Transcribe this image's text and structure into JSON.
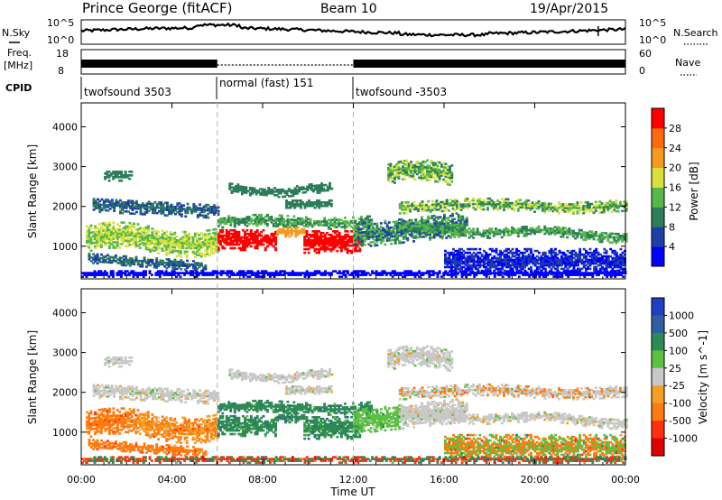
{
  "header": {
    "station": "Prince George (fitACF)",
    "beam": "Beam 10",
    "date": "19/Apr/2015"
  },
  "colors": {
    "trace": "#000000",
    "axis": "#000000",
    "guide": "#b0b0b0"
  },
  "noise_panel": {
    "left_label": "N.Sky",
    "left_ticks": [
      "10^5",
      "10^0"
    ],
    "right_label": "N.Search",
    "right_ticks": [
      "10^5",
      "10^0"
    ],
    "scale": "log"
  },
  "freq_panel": {
    "left_label_1": "Freq.",
    "left_label_2": "[MHz]",
    "left_ticks": [
      "18",
      "8"
    ],
    "right_label": "Nave",
    "right_ticks": [
      "60",
      "0"
    ]
  },
  "cpid": {
    "label": "CPID",
    "segments": [
      {
        "name": "twofsound 3503",
        "start_h": 0,
        "end_h": 6
      },
      {
        "name": "normal (fast) 151",
        "start_h": 6,
        "end_h": 12
      },
      {
        "name": "twofsound -3503",
        "start_h": 12,
        "end_h": 24
      }
    ]
  },
  "x_axis": {
    "label": "Time UT",
    "ticks": [
      "00:00",
      "04:00",
      "08:00",
      "12:00",
      "16:00",
      "20:00",
      "00:00"
    ],
    "range_h": [
      0,
      24
    ]
  },
  "chart_data": [
    {
      "type": "heatmap",
      "name_key": "power",
      "ylabel": "Slant Range [km]",
      "yticks": [
        1000,
        2000,
        3000,
        4000
      ],
      "ylim": [
        180,
        4600
      ],
      "colorbar_label": "Power [dB]",
      "colorbar_ticks": [
        "4",
        "8",
        "12",
        "16",
        "20",
        "24",
        "28"
      ],
      "colorbar_colors": [
        "#0000ff",
        "#1f3fa8",
        "#2d7d5a",
        "#56b84a",
        "#d9e03a",
        "#f59a1e",
        "#ff6a10",
        "#ff0000"
      ]
    },
    {
      "type": "heatmap",
      "name_key": "velocity",
      "ylabel": "Slant Range [km]",
      "yticks": [
        1000,
        2000,
        3000,
        4000
      ],
      "ylim": [
        180,
        4600
      ],
      "colorbar_label": "Velocity [m s^-1]",
      "colorbar_ticks": [
        "1000",
        "500",
        "100",
        "25",
        "-25",
        "-100",
        "-500",
        "-1000"
      ],
      "colorbar_colors": [
        "#2040c0",
        "#2f5fa0",
        "#2e8a55",
        "#5cc040",
        "#c8c8c8",
        "#f5a020",
        "#ff7a10",
        "#ff3010",
        "#e00000"
      ]
    }
  ]
}
